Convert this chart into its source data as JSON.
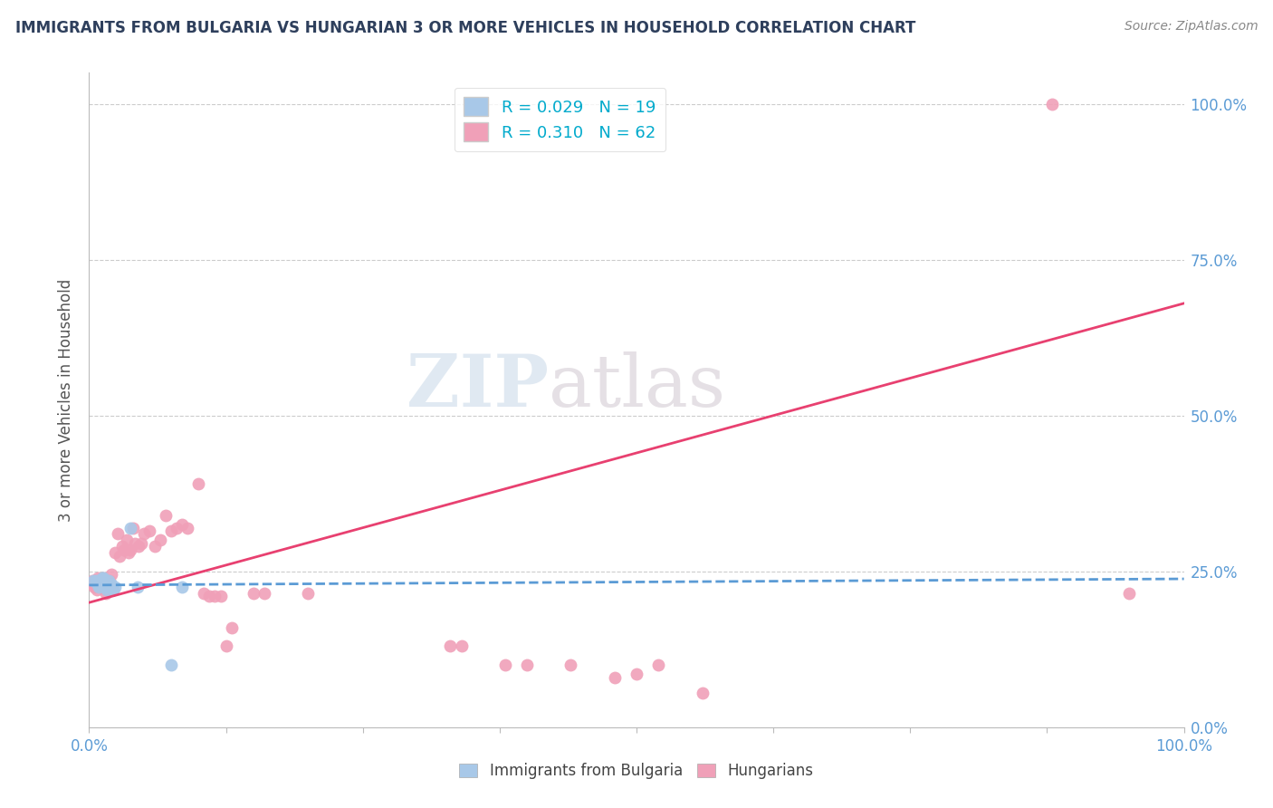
{
  "title": "IMMIGRANTS FROM BULGARIA VS HUNGARIAN 3 OR MORE VEHICLES IN HOUSEHOLD CORRELATION CHART",
  "source": "Source: ZipAtlas.com",
  "ylabel": "3 or more Vehicles in Household",
  "ytick_labels": [
    "0.0%",
    "25.0%",
    "50.0%",
    "75.0%",
    "100.0%"
  ],
  "ytick_values": [
    0.0,
    0.25,
    0.5,
    0.75,
    1.0
  ],
  "xtick_values": [
    0.0,
    0.125,
    0.25,
    0.375,
    0.5,
    0.625,
    0.75,
    0.875,
    1.0
  ],
  "legend_entries": [
    {
      "label": "R = 0.029   N = 19",
      "color": "#a8c8e8"
    },
    {
      "label": "R = 0.310   N = 62",
      "color": "#f0a0b8"
    }
  ],
  "watermark_zip": "ZIP",
  "watermark_atlas": "atlas",
  "bulgaria_scatter": [
    [
      0.004,
      0.235
    ],
    [
      0.006,
      0.235
    ],
    [
      0.008,
      0.23
    ],
    [
      0.009,
      0.225
    ],
    [
      0.01,
      0.23
    ],
    [
      0.011,
      0.235
    ],
    [
      0.012,
      0.24
    ],
    [
      0.013,
      0.24
    ],
    [
      0.014,
      0.23
    ],
    [
      0.015,
      0.225
    ],
    [
      0.016,
      0.22
    ],
    [
      0.018,
      0.235
    ],
    [
      0.02,
      0.23
    ],
    [
      0.022,
      0.22
    ],
    [
      0.024,
      0.225
    ],
    [
      0.038,
      0.32
    ],
    [
      0.044,
      0.225
    ],
    [
      0.075,
      0.1
    ],
    [
      0.085,
      0.225
    ]
  ],
  "hungarian_scatter": [
    [
      0.003,
      0.235
    ],
    [
      0.004,
      0.23
    ],
    [
      0.005,
      0.225
    ],
    [
      0.006,
      0.235
    ],
    [
      0.007,
      0.22
    ],
    [
      0.008,
      0.24
    ],
    [
      0.009,
      0.23
    ],
    [
      0.01,
      0.235
    ],
    [
      0.011,
      0.23
    ],
    [
      0.012,
      0.225
    ],
    [
      0.013,
      0.24
    ],
    [
      0.014,
      0.235
    ],
    [
      0.015,
      0.215
    ],
    [
      0.016,
      0.22
    ],
    [
      0.017,
      0.235
    ],
    [
      0.018,
      0.22
    ],
    [
      0.019,
      0.235
    ],
    [
      0.02,
      0.245
    ],
    [
      0.021,
      0.22
    ],
    [
      0.022,
      0.22
    ],
    [
      0.024,
      0.28
    ],
    [
      0.026,
      0.31
    ],
    [
      0.028,
      0.275
    ],
    [
      0.03,
      0.29
    ],
    [
      0.032,
      0.285
    ],
    [
      0.034,
      0.3
    ],
    [
      0.036,
      0.28
    ],
    [
      0.038,
      0.285
    ],
    [
      0.04,
      0.32
    ],
    [
      0.042,
      0.295
    ],
    [
      0.045,
      0.29
    ],
    [
      0.048,
      0.295
    ],
    [
      0.05,
      0.31
    ],
    [
      0.055,
      0.315
    ],
    [
      0.06,
      0.29
    ],
    [
      0.065,
      0.3
    ],
    [
      0.07,
      0.34
    ],
    [
      0.075,
      0.315
    ],
    [
      0.08,
      0.32
    ],
    [
      0.085,
      0.325
    ],
    [
      0.09,
      0.32
    ],
    [
      0.1,
      0.39
    ],
    [
      0.105,
      0.215
    ],
    [
      0.11,
      0.21
    ],
    [
      0.115,
      0.21
    ],
    [
      0.12,
      0.21
    ],
    [
      0.125,
      0.13
    ],
    [
      0.13,
      0.16
    ],
    [
      0.15,
      0.215
    ],
    [
      0.16,
      0.215
    ],
    [
      0.2,
      0.215
    ],
    [
      0.33,
      0.13
    ],
    [
      0.34,
      0.13
    ],
    [
      0.38,
      0.1
    ],
    [
      0.4,
      0.1
    ],
    [
      0.44,
      0.1
    ],
    [
      0.48,
      0.08
    ],
    [
      0.5,
      0.085
    ],
    [
      0.52,
      0.1
    ],
    [
      0.56,
      0.055
    ],
    [
      0.88,
      1.0
    ],
    [
      0.95,
      0.215
    ]
  ],
  "bulgaria_line_x": [
    0.0,
    1.0
  ],
  "bulgaria_line_y": [
    0.228,
    0.238
  ],
  "bulgarian_line_color": "#5b9bd5",
  "bulgarian_line_lw": 2.0,
  "hungarian_line_x": [
    0.0,
    1.0
  ],
  "hungarian_line_y": [
    0.2,
    0.68
  ],
  "hungarian_line_color": "#e84070",
  "hungarian_line_lw": 2.0,
  "scatter_bulgaria_color": "#a8c8e8",
  "scatter_hungarian_color": "#f0a0b8",
  "scatter_size": 100,
  "xmin": 0.0,
  "xmax": 1.0,
  "ymin": 0.0,
  "ymax": 1.05,
  "bg_color": "#ffffff",
  "grid_color": "#cccccc",
  "title_color": "#2e3f5c",
  "axis_tick_color": "#5b9bd5",
  "legend_text_color": "#00aacc",
  "watermark_color_zip": "#c8d8e8",
  "watermark_color_atlas": "#d0c8d0",
  "source_color": "#888888"
}
